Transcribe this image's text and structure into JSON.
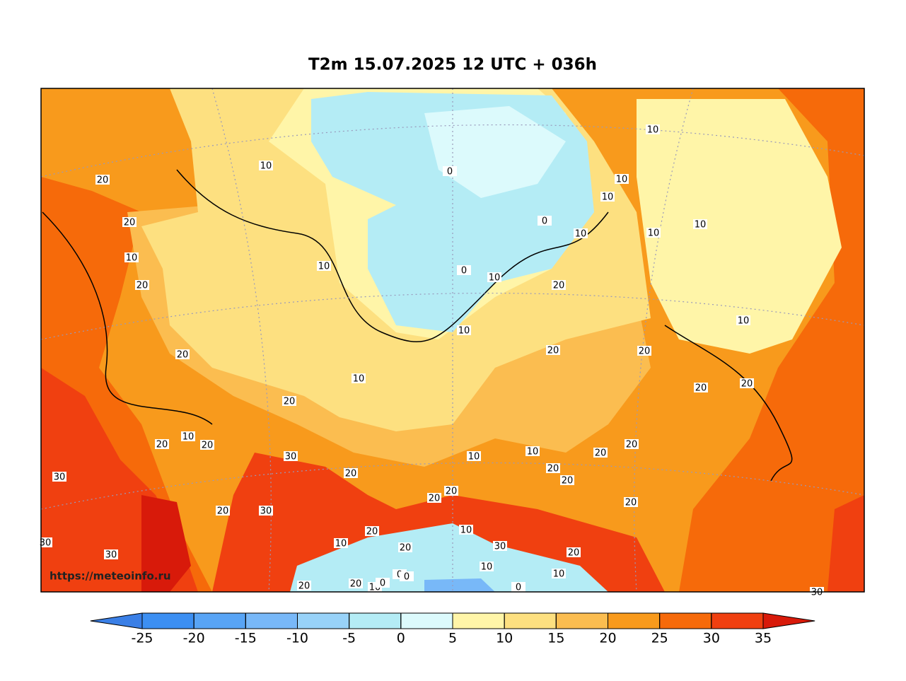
{
  "title": "T2m 15.07.2025 12 UTC + 036h",
  "watermark": "https://meteoinfo.ru",
  "colorbar": {
    "ticks": [
      -25,
      -20,
      -15,
      -10,
      -5,
      0,
      5,
      10,
      15,
      20,
      25,
      30,
      35
    ],
    "colors": [
      "#3a7fe6",
      "#3c8ff2",
      "#58a4f5",
      "#78b8f8",
      "#98d2f8",
      "#b4ecf5",
      "#dcfafc",
      "#fff5a8",
      "#fde080",
      "#fbbd50",
      "#f89a1c",
      "#f66a0a",
      "#f04010",
      "#d81a0a"
    ]
  },
  "contour_labels": [
    10,
    20,
    20,
    10,
    20,
    20,
    10,
    10,
    20,
    10,
    20,
    20,
    30,
    30,
    20,
    20,
    30,
    30,
    30,
    0,
    0,
    0,
    10,
    10,
    20,
    20,
    10,
    10,
    10,
    10,
    10,
    10,
    10,
    20,
    20,
    20,
    20,
    20,
    10,
    10,
    20,
    20,
    20,
    20,
    20,
    20,
    10,
    10,
    20,
    30,
    20,
    10,
    10,
    0,
    0,
    20,
    10,
    0,
    20,
    0,
    30
  ]
}
